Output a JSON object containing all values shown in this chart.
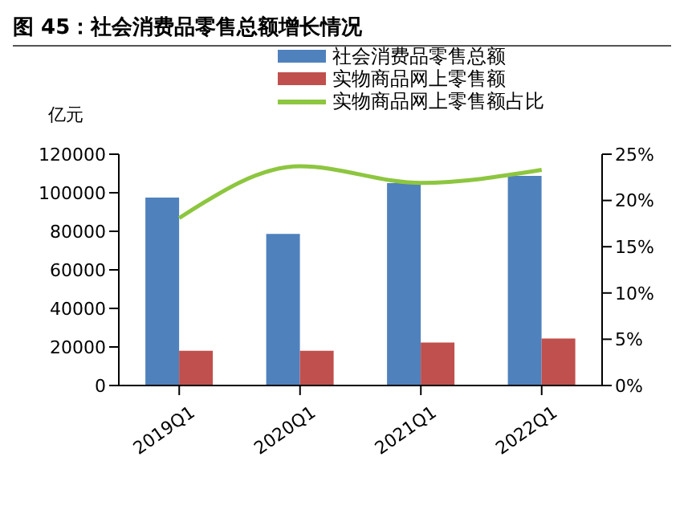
{
  "chart_data": {
    "type": "bar",
    "title": "图 45：社会消费品零售总额增长情况",
    "ylabel": "亿元",
    "categories": [
      "2019Q1",
      "2020Q1",
      "2021Q1",
      "2022Q1"
    ],
    "series": [
      {
        "name": "社会消费品零售总额",
        "color": "#4f81bd",
        "values": [
          97500,
          78600,
          105000,
          108700
        ]
      },
      {
        "name": "实物商品网上零售额",
        "color": "#c0504d",
        "values": [
          18000,
          18000,
          22300,
          24400
        ]
      },
      {
        "name": "实物商品网上零售额占比",
        "color": "#8dc63f",
        "type": "line",
        "axis": "y2",
        "values": [
          18.1,
          23.7,
          21.9,
          23.3
        ]
      }
    ],
    "ylim": [
      0,
      120000
    ],
    "yticks": [
      0,
      20000,
      40000,
      60000,
      80000,
      100000,
      120000
    ],
    "y2lim": [
      0,
      25
    ],
    "y2ticks": [
      {
        "value": 0,
        "label": "0%"
      },
      {
        "value": 5,
        "label": "5%"
      },
      {
        "value": 10,
        "label": "10%"
      },
      {
        "value": 15,
        "label": "15%"
      },
      {
        "value": 20,
        "label": "20%"
      },
      {
        "value": 25,
        "label": "25%"
      }
    ],
    "legend": "top",
    "grid": false,
    "marker": "none",
    "line_style": "solid"
  }
}
